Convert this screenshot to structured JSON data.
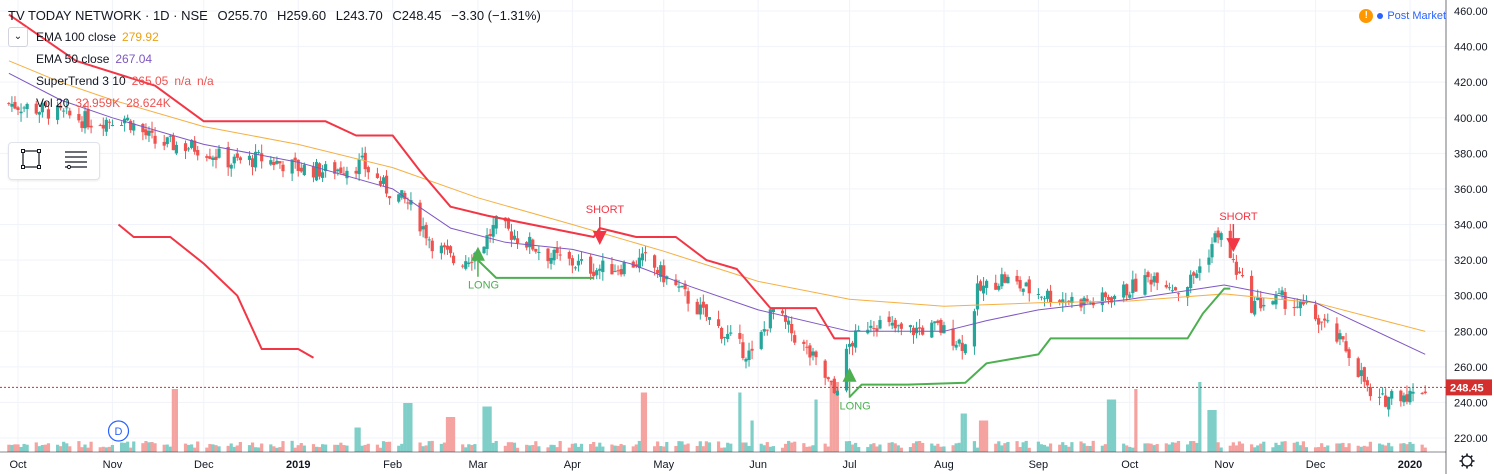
{
  "header": {
    "symbol": "TV TODAY NETWORK · 1D · NSE",
    "open": "O255.70",
    "high": "H259.60",
    "low": "L243.70",
    "close": "C248.45",
    "change": "−3.30 (−1.31%)",
    "collapse_icon": "chevron-down-icon"
  },
  "indicators": [
    {
      "name": "EMA 100 close",
      "value": "279.92",
      "color": "#e8a317"
    },
    {
      "name": "EMA 50 close",
      "value": "267.04",
      "color": "#7e57c2"
    },
    {
      "name": "SuperTrend 3 10",
      "value": "265.05",
      "extra1": "n/a",
      "extra2": "n/a",
      "color": "#ef5350"
    },
    {
      "name": "Vol 20",
      "value": "32.959K",
      "extra1": "28.624K",
      "color": "#ef5350"
    }
  ],
  "toolbox": {
    "icons": [
      "rectangle-select-icon",
      "list-settings-icon"
    ]
  },
  "market_status": {
    "label": "Post Market",
    "warn_icon": "!"
  },
  "settings_icon": "gear-icon",
  "colors": {
    "up": "#26a69a",
    "down": "#ef5350",
    "ema100": "#f5b042",
    "ema50": "#7e57c2",
    "st_down": "#f23645",
    "st_up": "#4caf50",
    "price_line": "#d32f2f",
    "vol_up": "#7fcfc8",
    "vol_down": "#f5a3a0"
  },
  "chart_data": {
    "type": "candlestick",
    "symbol": "TV TODAY NETWORK",
    "interval": "1D",
    "exchange": "NSE",
    "ylim": [
      215,
      460
    ],
    "y_ticks": [
      220,
      240,
      260,
      280,
      300,
      320,
      340,
      360,
      380,
      400,
      420,
      440,
      460
    ],
    "x_ticks": [
      "Oct",
      "Nov",
      "Dec",
      "2019",
      "Feb",
      "Mar",
      "Apr",
      "May",
      "Jun",
      "Jul",
      "Aug",
      "Sep",
      "Oct",
      "Nov",
      "Dec",
      "2020"
    ],
    "last_price": 248.45,
    "last_price_label": "248.45",
    "close_path": [
      [
        "Sep 28",
        408
      ],
      [
        "Oct 10",
        404
      ],
      [
        "Oct 25",
        398
      ],
      [
        "Nov 5",
        400
      ],
      [
        "Nov 15",
        386
      ],
      [
        "Nov 30",
        383
      ],
      [
        "Dec 10",
        375
      ],
      [
        "Dec 20",
        377
      ],
      [
        "Jan 1",
        372
      ],
      [
        "Jan 10",
        370
      ],
      [
        "Jan 22",
        374
      ],
      [
        "Jan 30",
        360
      ],
      [
        "Feb 6",
        352
      ],
      [
        "Feb 14",
        330
      ],
      [
        "Feb 22",
        318
      ],
      [
        "Mar 1",
        325
      ],
      [
        "Mar 7",
        340
      ],
      [
        "Mar 14",
        333
      ],
      [
        "Mar 25",
        322
      ],
      [
        "Apr 8",
        315
      ],
      [
        "Apr 16",
        316
      ],
      [
        "Apr 25",
        320
      ],
      [
        "May 5",
        305
      ],
      [
        "May 15",
        288
      ],
      [
        "May 25",
        272
      ],
      [
        "May 30",
        266
      ],
      [
        "Jun 6",
        292
      ],
      [
        "Jun 14",
        275
      ],
      [
        "Jun 21",
        260
      ],
      [
        "Jun 26",
        245
      ],
      [
        "Jul 1",
        272
      ],
      [
        "Jul 8",
        286
      ],
      [
        "Jul 18",
        280
      ],
      [
        "Jul 30",
        282
      ],
      [
        "Aug 8",
        272
      ],
      [
        "Aug 12",
        302
      ],
      [
        "Aug 20",
        310
      ],
      [
        "Aug 29",
        303
      ],
      [
        "Sep 10",
        298
      ],
      [
        "Sep 20",
        296
      ],
      [
        "Oct 1",
        304
      ],
      [
        "Oct 10",
        312
      ],
      [
        "Oct 18",
        302
      ],
      [
        "Oct 25",
        318
      ],
      [
        "Oct 30",
        336
      ],
      [
        "Nov 4",
        318
      ],
      [
        "Nov 10",
        295
      ],
      [
        "Nov 20",
        298
      ],
      [
        "Nov 28",
        292
      ],
      [
        "Dec 5",
        282
      ],
      [
        "Dec 12",
        268
      ],
      [
        "Dec 17",
        252
      ],
      [
        "Dec 20",
        237
      ],
      [
        "Dec 27",
        246
      ],
      [
        "Jan 2",
        244
      ],
      [
        "Jan 6",
        248.45
      ]
    ],
    "ema100": [
      [
        "Sep 28",
        432
      ],
      [
        "Oct 15",
        420
      ],
      [
        "Nov 1",
        410
      ],
      [
        "Dec 1",
        395
      ],
      [
        "Jan 1",
        385
      ],
      [
        "Feb 1",
        372
      ],
      [
        "Mar 1",
        355
      ],
      [
        "Apr 1",
        340
      ],
      [
        "May 1",
        325
      ],
      [
        "Jun 1",
        308
      ],
      [
        "Jul 1",
        298
      ],
      [
        "Aug 1",
        294
      ],
      [
        "Sep 1",
        296
      ],
      [
        "Oct 1",
        297
      ],
      [
        "Nov 1",
        301
      ],
      [
        "Dec 1",
        296
      ],
      [
        "Jan 6",
        279.92
      ]
    ],
    "ema50": [
      [
        "Sep 28",
        425
      ],
      [
        "Oct 15",
        410
      ],
      [
        "Nov 1",
        400
      ],
      [
        "Dec 1",
        385
      ],
      [
        "Jan 1",
        375
      ],
      [
        "Feb 1",
        360
      ],
      [
        "Feb 20",
        338
      ],
      [
        "Mar 10",
        330
      ],
      [
        "Apr 1",
        326
      ],
      [
        "Apr 20",
        318
      ],
      [
        "May 10",
        305
      ],
      [
        "Jun 1",
        292
      ],
      [
        "Jul 1",
        280
      ],
      [
        "Aug 1",
        280
      ],
      [
        "Aug 15",
        286
      ],
      [
        "Sep 1",
        292
      ],
      [
        "Oct 1",
        298
      ],
      [
        "Nov 1",
        306
      ],
      [
        "Dec 1",
        296
      ],
      [
        "Jan 6",
        267.04
      ]
    ],
    "supertrend_down": [
      [
        "Sep 28",
        458
      ],
      [
        "Oct 20",
        432
      ],
      [
        "Nov 15",
        418
      ],
      [
        "Dec 1",
        398
      ],
      [
        "Jan 10",
        398
      ],
      [
        "Jan 20",
        390
      ],
      [
        "Feb 1",
        390
      ],
      [
        "Feb 10",
        370
      ],
      [
        "Feb 20",
        350
      ],
      [
        "Mar 4",
        345
      ],
      [
        "Apr 8",
        333
      ],
      [
        "Apr 10",
        338
      ],
      [
        "Apr 22",
        333
      ],
      [
        "May 5",
        333
      ],
      [
        "May 15",
        320
      ],
      [
        "May 25",
        315
      ],
      [
        "Jun 5",
        293
      ],
      [
        "Jun 20",
        293
      ],
      [
        "Jun 26",
        276
      ],
      [
        "Jul 1",
        276
      ]
    ],
    "supertrend_down2": [
      [
        "Nov 3",
        340
      ],
      [
        "Nov 8",
        333
      ],
      [
        "Nov 20",
        333
      ],
      [
        "Dec 1",
        318
      ],
      [
        "Dec 12",
        300
      ],
      [
        "Dec 20",
        270
      ],
      [
        "Jan 1",
        270
      ],
      [
        "Jan 6",
        265.05
      ]
    ],
    "supertrend_up": [
      [
        "Mar 1",
        320
      ],
      [
        "Mar 7",
        310
      ],
      [
        "Apr 8",
        310
      ]
    ],
    "supertrend_up2": [
      [
        "Jul 1",
        243
      ],
      [
        "Jul 5",
        250
      ],
      [
        "Jul 20",
        250
      ],
      [
        "Aug 8",
        251
      ],
      [
        "Aug 15",
        262
      ],
      [
        "Sep 1",
        267
      ],
      [
        "Sep 5",
        276
      ],
      [
        "Oct 20",
        276
      ],
      [
        "Oct 25",
        290
      ],
      [
        "Nov 1",
        304
      ],
      [
        "Nov 3",
        304
      ]
    ],
    "signals": [
      {
        "type": "LONG",
        "date": "Mar 1",
        "price": 323
      },
      {
        "type": "SHORT",
        "date": "Apr 10",
        "price": 333
      },
      {
        "type": "LONG",
        "date": "Jul 1",
        "price": 255
      },
      {
        "type": "SHORT",
        "date": "Nov 4",
        "price": 329
      }
    ],
    "dividends": [
      {
        "label": "D",
        "date": "Sep 6"
      },
      {
        "label": "D",
        "date": "Nov 3"
      }
    ],
    "volume_spikes": [
      {
        "date": "Nov 22",
        "level": 0.9,
        "dir": "down"
      },
      {
        "date": "Jan 20",
        "level": 0.35,
        "dir": "up"
      },
      {
        "date": "Feb 6",
        "level": 0.7,
        "dir": "up"
      },
      {
        "date": "Feb 20",
        "level": 0.5,
        "dir": "down"
      },
      {
        "date": "Mar 4",
        "level": 0.65,
        "dir": "up"
      },
      {
        "date": "Apr 25",
        "level": 0.85,
        "dir": "down"
      },
      {
        "date": "May 25",
        "level": 0.85,
        "dir": "up"
      },
      {
        "date": "May 31",
        "level": 0.45,
        "dir": "up"
      },
      {
        "date": "Jun 21",
        "level": 0.75,
        "dir": "up"
      },
      {
        "date": "Jun 26",
        "level": 1.0,
        "dir": "down"
      },
      {
        "date": "Aug 8",
        "level": 0.55,
        "dir": "up"
      },
      {
        "date": "Aug 14",
        "level": 0.45,
        "dir": "down"
      },
      {
        "date": "Sep 25",
        "level": 0.75,
        "dir": "up"
      },
      {
        "date": "Oct 4",
        "level": 0.9,
        "dir": "down"
      },
      {
        "date": "Oct 25",
        "level": 1.0,
        "dir": "up"
      },
      {
        "date": "Oct 28",
        "level": 0.6,
        "dir": "up"
      }
    ]
  }
}
